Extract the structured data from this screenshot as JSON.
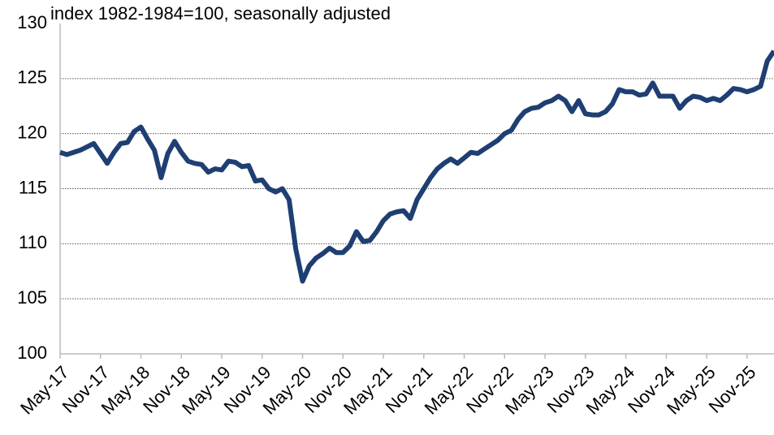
{
  "chart_data": {
    "type": "line",
    "subtitle": "index 1982-1984=100, seasonally adjusted",
    "categories": [
      "May-17",
      null,
      null,
      null,
      null,
      null,
      "Nov-17",
      null,
      null,
      null,
      null,
      null,
      "May-18",
      null,
      null,
      null,
      null,
      null,
      "Nov-18",
      null,
      null,
      null,
      null,
      null,
      "May-19",
      null,
      null,
      null,
      null,
      null,
      "Nov-19",
      null,
      null,
      null,
      null,
      null,
      "May-20",
      null,
      null,
      null,
      null,
      null,
      "Nov-20",
      null,
      null,
      null,
      null,
      null,
      "May-21",
      null,
      null,
      null,
      null,
      null,
      "Nov-21",
      null,
      null,
      null,
      null,
      null,
      "May-22",
      null,
      null,
      null,
      null,
      null,
      "Nov-22",
      null,
      null,
      null,
      null,
      null,
      "May-23",
      null,
      null,
      null,
      null,
      null,
      "Nov-23",
      null,
      null,
      null,
      null,
      null,
      "May-24",
      null,
      null,
      null,
      null,
      null,
      "Nov-24",
      null,
      null,
      null,
      null,
      null,
      "May-25",
      null,
      null,
      null,
      null,
      null,
      "Nov-25",
      null,
      null,
      null,
      null
    ],
    "series": [
      {
        "color": "#1f3f73",
        "values": [
          118.3,
          118.1,
          118.3,
          118.5,
          118.8,
          119.1,
          118.2,
          117.3,
          118.3,
          119.1,
          119.2,
          120.2,
          120.6,
          119.5,
          118.5,
          116.0,
          118.2,
          119.3,
          118.3,
          117.5,
          117.3,
          117.2,
          116.5,
          116.8,
          116.7,
          117.5,
          117.4,
          117.0,
          117.1,
          115.7,
          115.8,
          115.0,
          114.7,
          115.0,
          114.0,
          109.5,
          106.6,
          108.0,
          108.7,
          109.1,
          109.6,
          109.2,
          109.2,
          109.8,
          111.1,
          110.2,
          110.3,
          111.1,
          112.1,
          112.7,
          112.9,
          113.0,
          112.3,
          114.0,
          115.0,
          116.0,
          116.8,
          117.3,
          117.7,
          117.3,
          117.8,
          118.3,
          118.2,
          118.6,
          119.0,
          119.4,
          120.0,
          120.3,
          121.3,
          122.0,
          122.3,
          122.4,
          122.8,
          123.0,
          123.4,
          123.0,
          122.0,
          123.0,
          121.8,
          121.7,
          121.7,
          122.0,
          122.7,
          124.0,
          123.8,
          123.8,
          123.5,
          123.6,
          124.6,
          123.4,
          123.4,
          123.4,
          122.3,
          123.0,
          123.4,
          123.3,
          123.0,
          123.2,
          123.0,
          123.5,
          124.1,
          124.0,
          123.8,
          124.0,
          124.3,
          126.6,
          127.5
        ]
      }
    ],
    "ylim": [
      100,
      130
    ],
    "yticks": [
      100,
      105,
      110,
      115,
      120,
      125,
      130
    ],
    "grid": true
  }
}
